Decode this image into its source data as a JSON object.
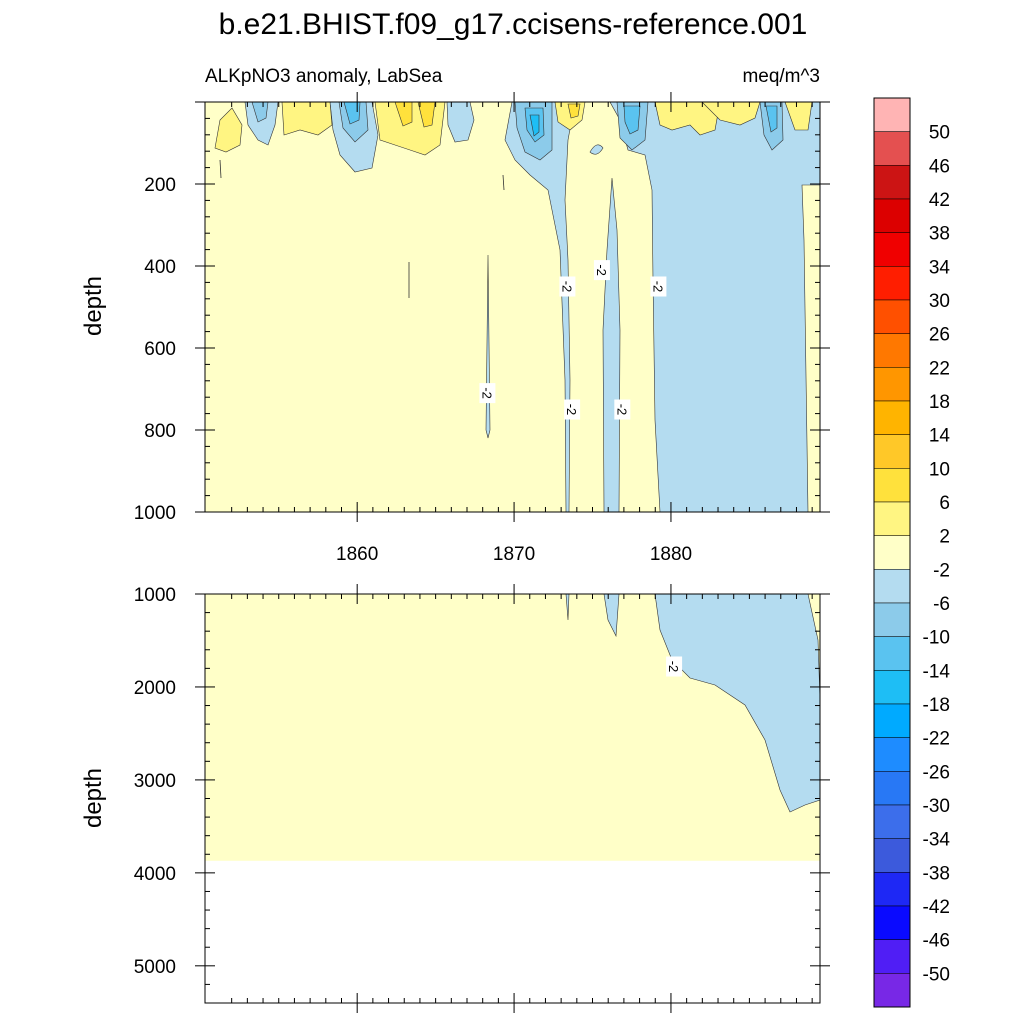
{
  "title": "b.e21.BHIST.f09_g17.ccisens-reference.001",
  "chart_data": {
    "type": "heatmap",
    "left_label": "ALKpNO3 anomaly, LabSea",
    "right_label": "meq/m^3",
    "x_ticks": [
      "1860",
      "1870",
      "1880"
    ],
    "x_tick_values": [
      1860,
      1870,
      1880
    ],
    "xlim": [
      1850.3,
      1889.5
    ],
    "panels": [
      {
        "ylabel": "depth",
        "ylim": [
          0,
          1000
        ],
        "y_ticks": [
          "200",
          "400",
          "600",
          "800",
          "1000"
        ],
        "y_tick_values": [
          200,
          400,
          600,
          800,
          1000
        ],
        "contour_labels": [
          {
            "text": "-2",
            "x": 1873.4,
            "y": 450
          },
          {
            "text": "-2",
            "x": 1875.6,
            "y": 410
          },
          {
            "text": "-2",
            "x": 1879.2,
            "y": 450
          },
          {
            "text": "-2",
            "x": 1868.3,
            "y": 710
          },
          {
            "text": "-2",
            "x": 1873.7,
            "y": 750
          },
          {
            "text": "-2",
            "x": 1876.9,
            "y": 750
          }
        ]
      },
      {
        "ylabel": "depth",
        "ylim": [
          1000,
          5400
        ],
        "y_ticks": [
          "1000",
          "2000",
          "3000",
          "4000",
          "5000"
        ],
        "y_tick_values": [
          1000,
          2000,
          3000,
          4000,
          5000
        ],
        "ocean_floor_depth": 3870,
        "contour_labels": [
          {
            "text": "-2",
            "x": 1880.2,
            "y": 1780
          }
        ]
      }
    ],
    "colorbar": {
      "labels": [
        "50",
        "46",
        "42",
        "38",
        "34",
        "30",
        "26",
        "22",
        "18",
        "14",
        "10",
        "6",
        "2",
        "-2",
        "-6",
        "-10",
        "-14",
        "-18",
        "-22",
        "-26",
        "-30",
        "-34",
        "-38",
        "-42",
        "-46",
        "-50"
      ],
      "colors": [
        "#ffb4b4",
        "#e45050",
        "#cc1414",
        "#dc0000",
        "#f00000",
        "#ff1e00",
        "#ff5000",
        "#ff7800",
        "#ff9600",
        "#ffb400",
        "#ffc828",
        "#ffe13c",
        "#fff582",
        "#ffffc8",
        "#b4dcf0",
        "#8ccbea",
        "#5ac3f0",
        "#1ebef5",
        "#00aaff",
        "#1e8cff",
        "#2878f5",
        "#3c6eeb",
        "#3c5adc",
        "#1e28f5",
        "#0a0aff",
        "#501ef5",
        "#7828e6"
      ]
    }
  }
}
